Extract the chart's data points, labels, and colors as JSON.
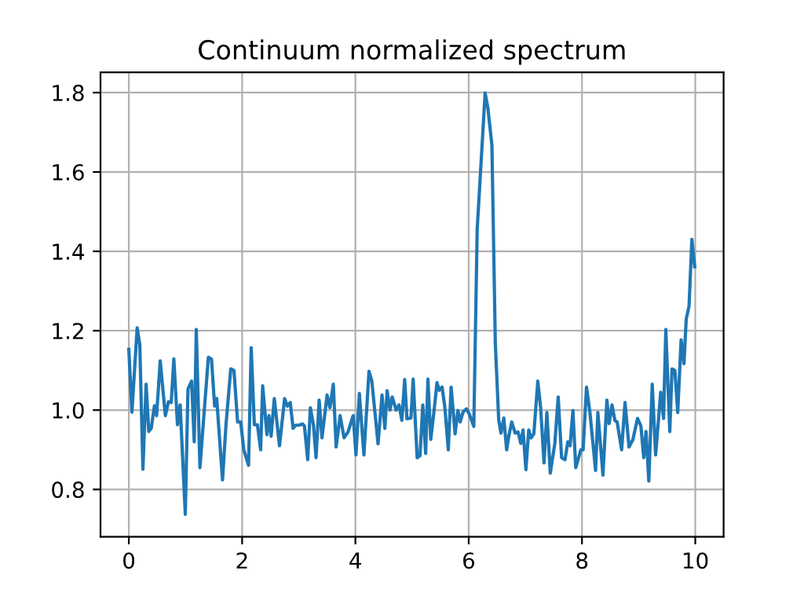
{
  "chart_data": {
    "type": "line",
    "title": "Continuum normalized spectrum",
    "x": [
      0.0,
      0.055,
      0.147,
      0.194,
      0.249,
      0.305,
      0.352,
      0.396,
      0.452,
      0.49,
      0.554,
      0.645,
      0.7,
      0.748,
      0.795,
      0.859,
      0.906,
      0.997,
      1.044,
      1.108,
      1.155,
      1.191,
      1.255,
      1.321,
      1.404,
      1.46,
      1.515,
      1.551,
      1.654,
      1.717,
      1.8,
      1.856,
      1.92,
      1.975,
      2.03,
      2.114,
      2.16,
      2.216,
      2.27,
      2.327,
      2.363,
      2.438,
      2.474,
      2.512,
      2.568,
      2.66,
      2.75,
      2.8,
      2.85,
      2.9,
      2.945,
      3.01,
      3.066,
      3.1,
      3.158,
      3.205,
      3.26,
      3.305,
      3.36,
      3.41,
      3.5,
      3.55,
      3.61,
      3.66,
      3.73,
      3.8,
      3.87,
      3.96,
      4.01,
      4.07,
      4.15,
      4.24,
      4.29,
      4.4,
      4.47,
      4.52,
      4.56,
      4.61,
      4.65,
      4.72,
      4.77,
      4.82,
      4.87,
      4.91,
      4.98,
      5.02,
      5.09,
      5.14,
      5.19,
      5.24,
      5.28,
      5.33,
      5.39,
      5.44,
      5.48,
      5.53,
      5.58,
      5.64,
      5.69,
      5.76,
      5.81,
      5.85,
      5.9,
      5.96,
      6.01,
      6.09,
      6.15,
      6.22,
      6.29,
      6.34,
      6.41,
      6.47,
      6.53,
      6.57,
      6.62,
      6.67,
      6.71,
      6.76,
      6.82,
      6.87,
      6.92,
      6.96,
      7.01,
      7.06,
      7.1,
      7.15,
      7.22,
      7.27,
      7.33,
      7.38,
      7.44,
      7.52,
      7.58,
      7.64,
      7.7,
      7.75,
      7.79,
      7.84,
      7.89,
      7.98,
      8.02,
      8.08,
      8.14,
      8.24,
      8.28,
      8.37,
      8.44,
      8.48,
      8.53,
      8.58,
      8.62,
      8.7,
      8.76,
      8.83,
      8.9,
      8.98,
      9.04,
      9.09,
      9.13,
      9.18,
      9.24,
      9.3,
      9.39,
      9.44,
      9.48,
      9.55,
      9.59,
      9.64,
      9.69,
      9.75,
      9.8,
      9.84,
      9.89,
      9.94,
      9.99
    ],
    "series": [
      {
        "color": "#1f77b4",
        "values": [
          1.153,
          0.995,
          1.207,
          1.164,
          0.851,
          1.065,
          0.946,
          0.954,
          1.011,
          0.986,
          1.124,
          0.986,
          1.021,
          1.019,
          1.129,
          0.963,
          1.013,
          0.737,
          1.053,
          1.073,
          0.92,
          1.203,
          0.855,
          0.978,
          1.133,
          1.128,
          1.01,
          1.029,
          0.824,
          0.966,
          1.104,
          1.1,
          0.97,
          0.97,
          0.9,
          0.861,
          1.157,
          0.963,
          0.963,
          0.9,
          1.061,
          0.938,
          0.986,
          0.934,
          1.029,
          0.91,
          1.029,
          1.01,
          1.019,
          0.954,
          0.962,
          0.962,
          0.965,
          0.96,
          0.875,
          1.006,
          0.962,
          0.88,
          1.025,
          0.93,
          1.038,
          1.006,
          1.065,
          0.907,
          0.986,
          0.93,
          0.945,
          0.986,
          0.887,
          1.042,
          0.887,
          1.098,
          1.073,
          0.915,
          1.038,
          0.954,
          1.049,
          1.0,
          1.033,
          1.0,
          1.013,
          0.974,
          1.077,
          0.978,
          0.98,
          1.078,
          0.88,
          0.885,
          1.013,
          0.891,
          1.078,
          0.926,
          1.0,
          1.069,
          1.05,
          1.058,
          1.006,
          0.9,
          1.058,
          0.94,
          0.999,
          0.97,
          0.995,
          1.003,
          0.99,
          0.959,
          1.456,
          1.627,
          1.799,
          1.76,
          1.667,
          1.168,
          0.975,
          0.942,
          0.98,
          0.9,
          0.936,
          0.97,
          0.942,
          0.945,
          0.916,
          0.95,
          0.85,
          0.95,
          0.93,
          0.94,
          1.073,
          1.006,
          0.867,
          0.994,
          0.841,
          0.915,
          1.033,
          0.88,
          0.875,
          0.92,
          0.91,
          0.999,
          0.855,
          0.9,
          0.9,
          1.058,
          0.994,
          0.848,
          0.994,
          0.836,
          1.025,
          0.966,
          1.013,
          0.974,
          0.97,
          0.9,
          1.019,
          0.907,
          0.926,
          0.979,
          0.96,
          0.88,
          0.946,
          0.821,
          1.065,
          0.887,
          1.045,
          0.979,
          1.203,
          0.946,
          1.104,
          1.1,
          0.994,
          1.177,
          1.117,
          1.229,
          1.262,
          1.43,
          1.361
        ]
      }
    ],
    "xlim": [
      -0.5,
      10.5
    ],
    "ylim": [
      0.681,
      1.851
    ],
    "xticks": [
      0,
      2,
      4,
      6,
      8,
      10
    ],
    "yticks": [
      0.8,
      {
        "value": 1,
        "label": "1.0"
      },
      1.2,
      1.4,
      1.6,
      1.8
    ],
    "grid": true
  }
}
